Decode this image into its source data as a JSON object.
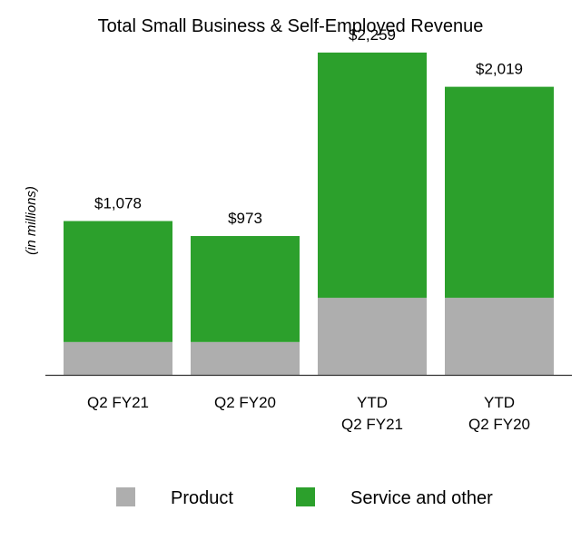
{
  "chart_data": {
    "type": "bar",
    "stacked": true,
    "title": "Total Small Business & Self-Employed Revenue",
    "xlabel": "",
    "ylabel": "(in millions)",
    "categories": [
      [
        "Q2 FY21"
      ],
      [
        "Q2 FY20"
      ],
      [
        "YTD",
        "Q2 FY21"
      ],
      [
        "YTD",
        "Q2 FY20"
      ]
    ],
    "totals": [
      "$1,078",
      "$973",
      "$2,259",
      "$2,019"
    ],
    "series": [
      {
        "name": "Product",
        "values": [
          230,
          230,
          540,
          540
        ],
        "color": "#aeaeae"
      },
      {
        "name": "Service and other",
        "values": [
          848,
          743,
          1719,
          1479
        ],
        "color": "#2ca02c"
      }
    ],
    "ylim": [
      0,
      2500
    ],
    "grid": false,
    "legend_position": "bottom"
  }
}
